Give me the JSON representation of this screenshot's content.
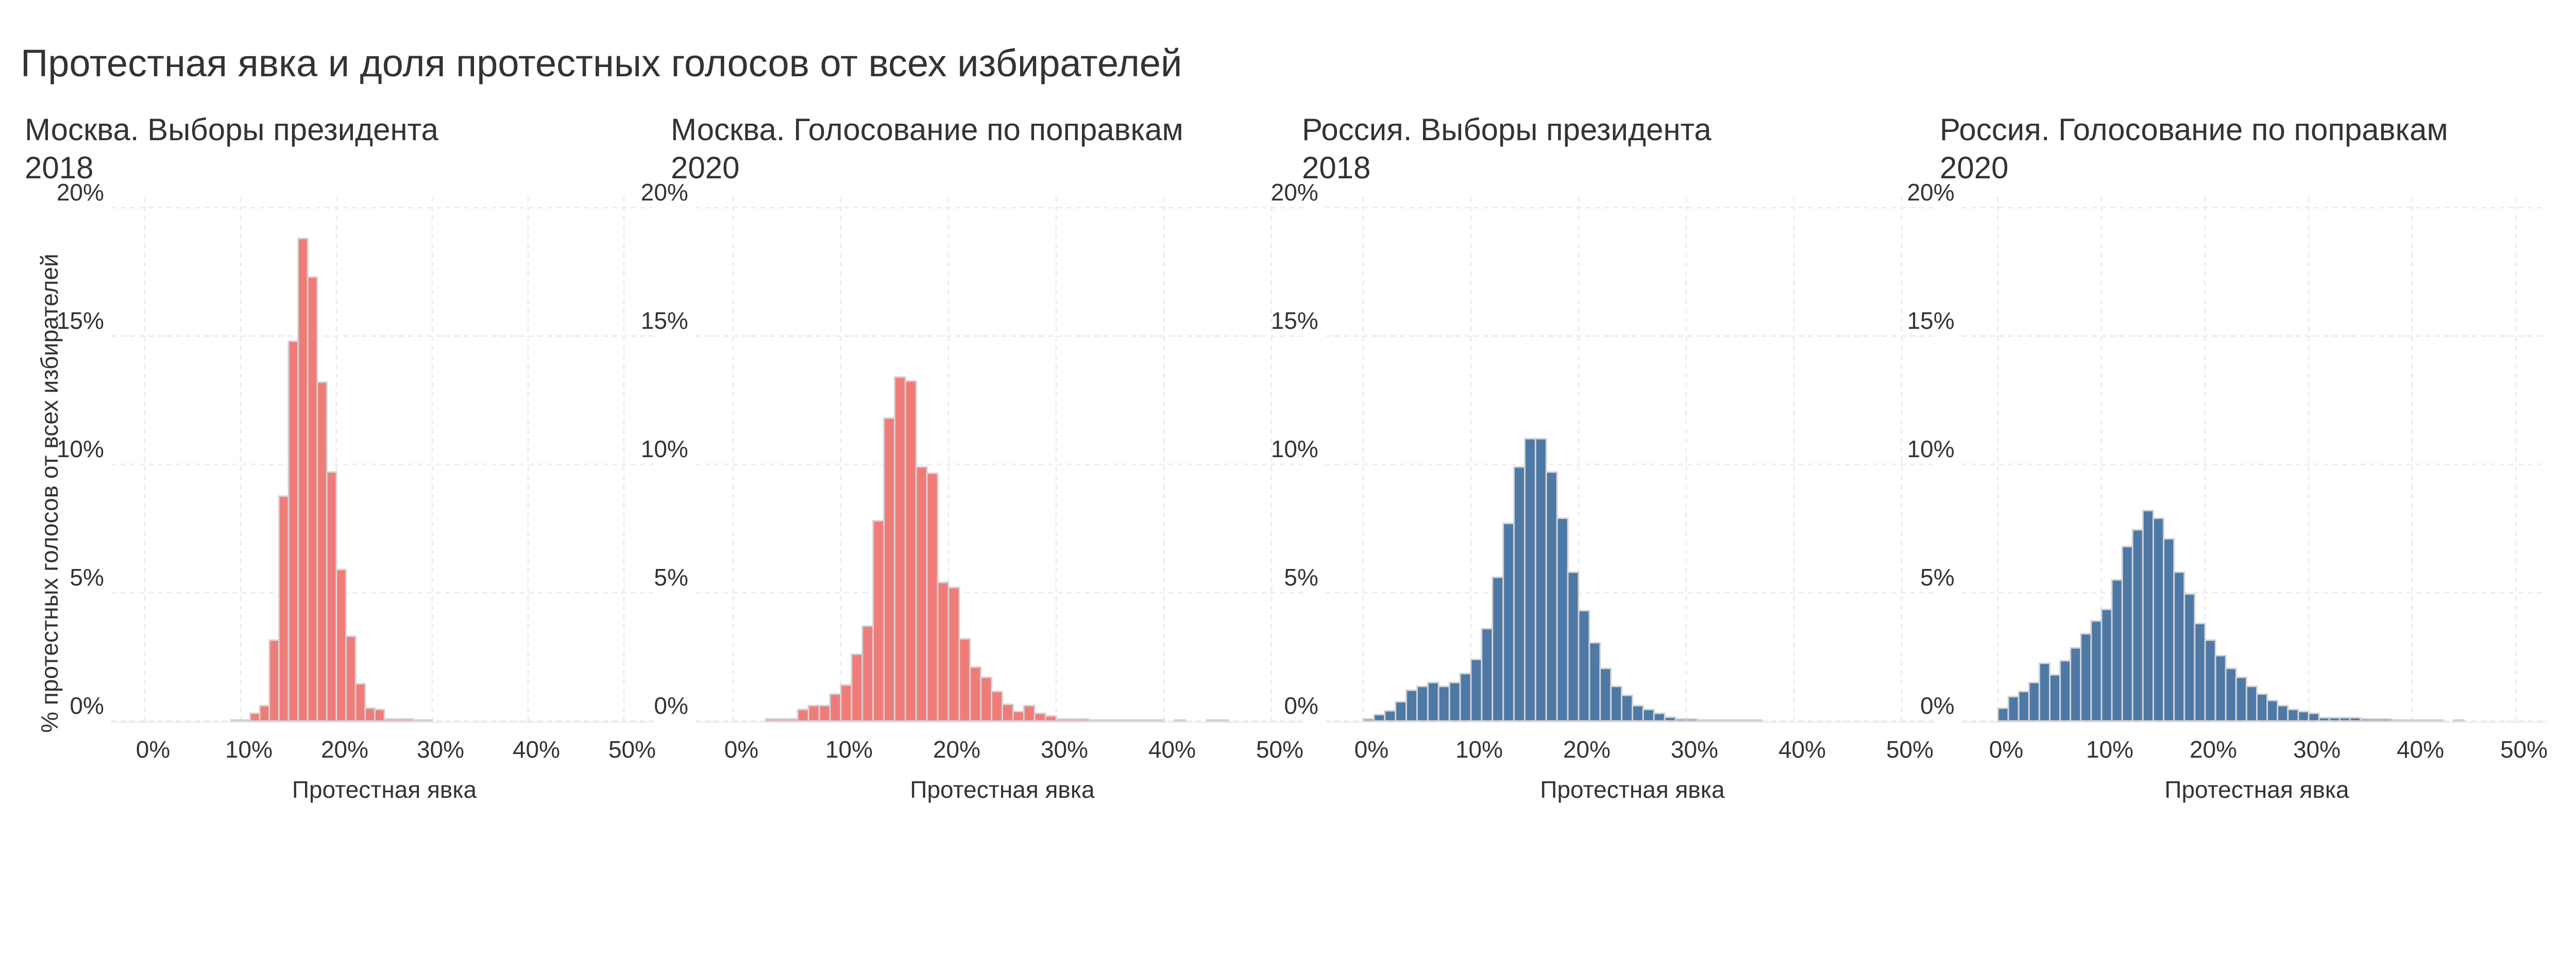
{
  "title": "Протестная явка и доля протестных голосов от всех избирателей",
  "y_axis_title": "% протестных голосов от всех избирателей",
  "chart_data": [
    {
      "type": "bar",
      "title_line1": "Москва. Выборы президента",
      "title_line2": "2018",
      "xlabel": "Протестная явка",
      "ylabel": "% протестных голосов от всех избирателей",
      "color": "#F07C79",
      "bin_width": 1,
      "xlim": [
        0,
        50
      ],
      "ylim": [
        0,
        20
      ],
      "x_ticks": [
        "0%",
        "10%",
        "20%",
        "30%",
        "40%",
        "50%"
      ],
      "y_ticks": [
        "0%",
        "5%",
        "10%",
        "15%",
        "20%"
      ],
      "grid": true,
      "x": [
        9,
        10,
        11,
        12,
        13,
        14,
        15,
        16,
        17,
        18,
        19,
        20,
        21,
        22,
        23,
        24,
        25,
        26,
        27,
        28,
        29
      ],
      "values": [
        0.03,
        0.03,
        0.3,
        0.6,
        3.15,
        8.76,
        14.8,
        18.8,
        17.3,
        13.2,
        9.7,
        5.9,
        3.3,
        1.45,
        0.5,
        0.45,
        0.08,
        0.08,
        0.08,
        0.03,
        0.03
      ]
    },
    {
      "type": "bar",
      "title_line1": "Москва. Голосование по поправкам",
      "title_line2": "2020",
      "xlabel": "Протестная явка",
      "color": "#F07C79",
      "bin_width": 1,
      "xlim": [
        0,
        50
      ],
      "ylim": [
        0,
        20
      ],
      "x_ticks": [
        "0%",
        "10%",
        "20%",
        "30%",
        "40%",
        "50%"
      ],
      "y_ticks": [
        "0%",
        "5%",
        "10%",
        "15%",
        "20%"
      ],
      "grid": true,
      "x": [
        3,
        4,
        5,
        6,
        7,
        8,
        9,
        10,
        11,
        12,
        13,
        14,
        15,
        16,
        17,
        18,
        19,
        20,
        21,
        22,
        23,
        24,
        25,
        26,
        27,
        28,
        29,
        30,
        31,
        32,
        33,
        34,
        35,
        36,
        37,
        38,
        39,
        41,
        44,
        45
      ],
      "values": [
        0.08,
        0.08,
        0.08,
        0.45,
        0.6,
        0.6,
        1.05,
        1.4,
        2.6,
        3.7,
        7.8,
        11.8,
        13.4,
        13.25,
        9.9,
        9.65,
        5.4,
        5.2,
        3.2,
        2.1,
        1.7,
        1.15,
        0.65,
        0.37,
        0.6,
        0.3,
        0.2,
        0.08,
        0.08,
        0.08,
        0.03,
        0.03,
        0.03,
        0.03,
        0.03,
        0.03,
        0.03,
        0.03,
        0.03,
        0.03
      ]
    },
    {
      "type": "bar",
      "title_line1": "Россия. Выборы президента",
      "title_line2": "2018",
      "xlabel": "Протестная явка",
      "color": "#4E78A6",
      "bin_width": 1,
      "xlim": [
        0,
        50
      ],
      "ylim": [
        0,
        20
      ],
      "x_ticks": [
        "0%",
        "10%",
        "20%",
        "30%",
        "40%",
        "50%"
      ],
      "y_ticks": [
        "0%",
        "5%",
        "10%",
        "15%",
        "20%"
      ],
      "grid": true,
      "x": [
        0,
        1,
        2,
        3,
        4,
        5,
        6,
        7,
        8,
        9,
        10,
        11,
        12,
        13,
        14,
        15,
        16,
        17,
        18,
        19,
        20,
        21,
        22,
        23,
        24,
        25,
        26,
        27,
        28,
        29,
        30,
        31,
        32,
        33,
        34,
        35,
        36
      ],
      "values": [
        0.08,
        0.25,
        0.4,
        0.75,
        1.2,
        1.35,
        1.5,
        1.35,
        1.5,
        1.85,
        2.4,
        3.6,
        5.6,
        7.7,
        9.9,
        11.0,
        11.0,
        9.7,
        7.9,
        5.8,
        4.3,
        3.05,
        2.05,
        1.35,
        1.0,
        0.6,
        0.45,
        0.3,
        0.15,
        0.08,
        0.08,
        0.03,
        0.03,
        0.03,
        0.03,
        0.03,
        0.03
      ]
    },
    {
      "type": "bar",
      "title_line1": "Россия. Голосование по поправкам",
      "title_line2": "2020",
      "xlabel": "Протестная явка",
      "color": "#4E78A6",
      "bin_width": 1,
      "xlim": [
        0,
        50
      ],
      "ylim": [
        0,
        20
      ],
      "x_ticks": [
        "0%",
        "10%",
        "20%",
        "30%",
        "40%",
        "50%"
      ],
      "y_ticks": [
        "0%",
        "5%",
        "10%",
        "15%",
        "20%"
      ],
      "grid": true,
      "x": [
        0,
        1,
        2,
        3,
        4,
        5,
        6,
        7,
        8,
        9,
        10,
        11,
        12,
        13,
        14,
        15,
        16,
        17,
        18,
        19,
        20,
        21,
        22,
        23,
        24,
        25,
        26,
        27,
        28,
        29,
        30,
        31,
        32,
        33,
        34,
        35,
        36,
        37,
        38,
        39,
        40,
        41,
        42,
        44
      ],
      "values": [
        0.5,
        0.95,
        1.15,
        1.5,
        2.25,
        1.8,
        2.35,
        2.85,
        3.4,
        3.9,
        4.35,
        5.5,
        6.8,
        7.45,
        8.2,
        7.9,
        7.1,
        5.8,
        4.95,
        3.8,
        3.15,
        2.55,
        2.05,
        1.7,
        1.35,
        1.05,
        0.8,
        0.6,
        0.45,
        0.37,
        0.3,
        0.13,
        0.13,
        0.13,
        0.13,
        0.08,
        0.08,
        0.08,
        0.03,
        0.03,
        0.03,
        0.03,
        0.03,
        0.03
      ]
    }
  ]
}
